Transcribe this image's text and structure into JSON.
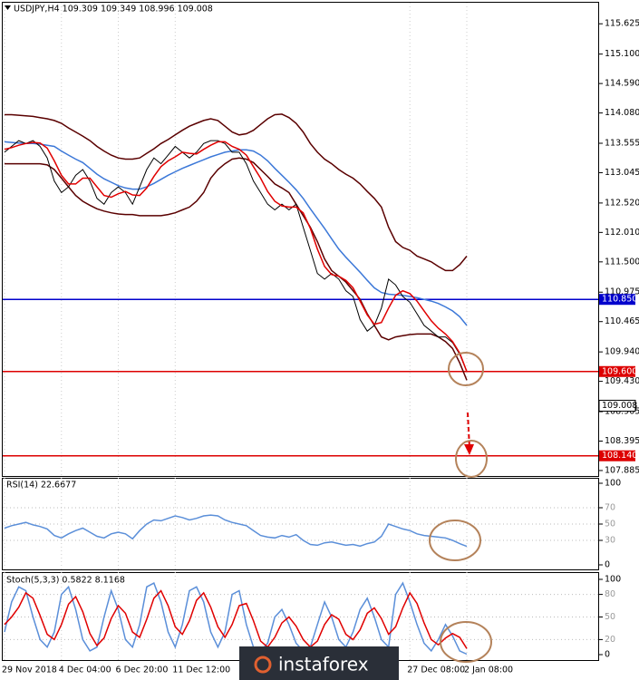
{
  "chart_data": [
    {
      "type": "line",
      "title": "USDJPY,H4  109.309 109.349 108.996 109.008",
      "categories": [
        "29 Nov 2018",
        null,
        null,
        null,
        null,
        null,
        null,
        null,
        "4 Dec 04:00",
        null,
        null,
        null,
        null,
        null,
        null,
        null,
        "6 Dec 20:00",
        null,
        null,
        null,
        null,
        null,
        null,
        null,
        "11 Dec 12:00",
        null,
        null,
        null,
        null,
        null,
        null,
        null,
        null,
        null,
        null,
        null,
        null,
        null,
        null,
        null,
        null,
        null,
        null,
        null,
        null,
        null,
        null,
        null,
        null,
        null,
        null,
        null,
        null,
        null,
        null,
        null,
        null,
        "27 Dec 08:00",
        null,
        null,
        null,
        null,
        null,
        null,
        null,
        "2 Jan 08:00"
      ],
      "ylim": [
        107.79,
        115.99
      ],
      "yticks": [
        {
          "value": 115.625,
          "label": "115.625"
        },
        {
          "value": 115.1,
          "label": "115.100"
        },
        {
          "value": 114.59,
          "label": "114.590"
        },
        {
          "value": 114.08,
          "label": "114.080"
        },
        {
          "value": 113.555,
          "label": "113.555"
        },
        {
          "value": 113.045,
          "label": "113.045"
        },
        {
          "value": 112.52,
          "label": "112.520"
        },
        {
          "value": 112.01,
          "label": "112.010"
        },
        {
          "value": 111.5,
          "label": "111.500"
        },
        {
          "value": 110.975,
          "label": "110.975"
        },
        {
          "value": 110.465,
          "label": "110.465"
        },
        {
          "value": 109.94,
          "label": "109.940"
        },
        {
          "value": 109.43,
          "label": "109.430"
        },
        {
          "value": 108.905,
          "label": "108.905"
        },
        {
          "value": 108.395,
          "label": "108.395"
        },
        {
          "value": 107.885,
          "label": "107.885"
        }
      ],
      "levels": [
        {
          "value": 110.85,
          "label": "110.850",
          "color": "#0000cc"
        },
        {
          "value": 109.6,
          "label": "109.600",
          "color": "#dd0000"
        },
        {
          "value": 108.14,
          "label": "108.140",
          "color": "#dd0000"
        }
      ],
      "current": {
        "value": 109.008,
        "label": "109.008"
      },
      "series": [
        {
          "color": "#5a0000",
          "values": [
            114.05,
            114.05,
            114.04,
            114.03,
            114.02,
            114.0,
            113.98,
            113.95,
            113.9,
            113.82,
            113.75,
            113.68,
            113.6,
            113.5,
            113.42,
            113.35,
            113.3,
            113.28,
            113.28,
            113.3,
            113.38,
            113.46,
            113.55,
            113.62,
            113.7,
            113.78,
            113.85,
            113.9,
            113.95,
            113.98,
            113.95,
            113.85,
            113.75,
            113.7,
            113.72,
            113.78,
            113.88,
            113.98,
            114.05,
            114.06,
            114.0,
            113.9,
            113.75,
            113.55,
            113.4,
            113.28,
            113.2,
            113.1,
            113.02,
            112.95,
            112.85,
            112.72,
            112.6,
            112.45,
            112.1,
            111.85,
            111.75,
            111.7,
            111.6,
            111.55,
            111.5,
            111.42,
            111.35,
            111.35,
            111.45,
            111.6
          ]
        },
        {
          "color": "#5a0000",
          "values": [
            113.2,
            113.2,
            113.2,
            113.2,
            113.2,
            113.2,
            113.18,
            113.1,
            112.95,
            112.8,
            112.65,
            112.55,
            112.48,
            112.42,
            112.38,
            112.35,
            112.33,
            112.32,
            112.32,
            112.3,
            112.3,
            112.3,
            112.3,
            112.32,
            112.35,
            112.4,
            112.45,
            112.55,
            112.7,
            112.95,
            113.1,
            113.2,
            113.28,
            113.3,
            113.28,
            113.22,
            113.1,
            112.98,
            112.85,
            112.78,
            112.7,
            112.5,
            112.3,
            112.1,
            111.85,
            111.55,
            111.35,
            111.25,
            111.15,
            111.0,
            110.85,
            110.6,
            110.4,
            110.2,
            110.15,
            110.2,
            110.22,
            110.24,
            110.25,
            110.25,
            110.25,
            110.2,
            110.12,
            110.0,
            109.75,
            109.45
          ]
        },
        {
          "color": "#3c78d8",
          "values": [
            113.58,
            113.57,
            113.56,
            113.55,
            113.55,
            113.54,
            113.52,
            113.5,
            113.42,
            113.35,
            113.28,
            113.22,
            113.12,
            113.02,
            112.94,
            112.88,
            112.82,
            112.78,
            112.76,
            112.76,
            112.8,
            112.86,
            112.93,
            113.0,
            113.06,
            113.12,
            113.17,
            113.22,
            113.27,
            113.32,
            113.36,
            113.4,
            113.42,
            113.44,
            113.44,
            113.42,
            113.35,
            113.25,
            113.12,
            113.0,
            112.88,
            112.75,
            112.6,
            112.42,
            112.25,
            112.08,
            111.9,
            111.72,
            111.58,
            111.45,
            111.32,
            111.18,
            111.05,
            110.97,
            110.94,
            110.93,
            110.92,
            110.9,
            110.88,
            110.85,
            110.82,
            110.78,
            110.72,
            110.65,
            110.55,
            110.4
          ]
        },
        {
          "color": "#000000",
          "values": [
            113.4,
            113.5,
            113.6,
            113.55,
            113.6,
            113.5,
            113.3,
            112.9,
            112.7,
            112.8,
            113.0,
            113.1,
            112.9,
            112.6,
            112.5,
            112.7,
            112.8,
            112.7,
            112.5,
            112.8,
            113.1,
            113.3,
            113.2,
            113.35,
            113.5,
            113.4,
            113.3,
            113.4,
            113.55,
            113.6,
            113.6,
            113.55,
            113.4,
            113.4,
            113.2,
            112.9,
            112.7,
            112.5,
            112.4,
            112.5,
            112.4,
            112.5,
            112.1,
            111.7,
            111.3,
            111.2,
            111.3,
            111.2,
            111.0,
            110.9,
            110.5,
            110.3,
            110.4,
            110.7,
            111.2,
            111.1,
            110.9,
            110.8,
            110.6,
            110.4,
            110.3,
            110.2,
            110.2,
            110.1,
            109.9,
            109.6
          ]
        },
        {
          "color": "#e00000",
          "values": [
            113.45,
            113.48,
            113.52,
            113.55,
            113.57,
            113.56,
            113.47,
            113.25,
            113.0,
            112.85,
            112.85,
            112.95,
            112.95,
            112.8,
            112.65,
            112.62,
            112.68,
            112.72,
            112.66,
            112.65,
            112.78,
            112.98,
            113.15,
            113.25,
            113.32,
            113.4,
            113.38,
            113.37,
            113.45,
            113.52,
            113.58,
            113.58,
            113.5,
            113.45,
            113.35,
            113.15,
            112.95,
            112.72,
            112.55,
            112.47,
            112.45,
            112.45,
            112.35,
            112.08,
            111.72,
            111.42,
            111.28,
            111.25,
            111.18,
            111.05,
            110.82,
            110.58,
            110.42,
            110.45,
            110.7,
            110.92,
            111.0,
            110.95,
            110.82,
            110.65,
            110.48,
            110.35,
            110.25,
            110.12,
            109.92,
            109.6
          ]
        }
      ]
    },
    {
      "type": "line",
      "title": "RSI(14) 22.6677",
      "ylim": [
        0,
        100
      ],
      "yticks": [
        100,
        70,
        50,
        30,
        0
      ],
      "series": [
        {
          "color": "#5b8fd9",
          "values": [
            45,
            48,
            50,
            52,
            49,
            47,
            44,
            36,
            33,
            38,
            42,
            45,
            40,
            35,
            33,
            38,
            40,
            38,
            32,
            42,
            50,
            55,
            54,
            57,
            60,
            58,
            55,
            57,
            60,
            61,
            60,
            55,
            52,
            50,
            48,
            42,
            36,
            34,
            33,
            36,
            34,
            37,
            30,
            25,
            24,
            27,
            28,
            26,
            24,
            25,
            23,
            26,
            28,
            35,
            50,
            47,
            44,
            42,
            38,
            36,
            35,
            34,
            33,
            30,
            26,
            22.67
          ]
        }
      ]
    },
    {
      "type": "line",
      "title": "Stoch(5,3,3) 0.5822 8.1168",
      "ylim": [
        0,
        100
      ],
      "yticks": [
        100,
        80,
        50,
        20,
        0
      ],
      "series": [
        {
          "color": "#5b8fd9",
          "values": [
            30,
            70,
            90,
            85,
            50,
            20,
            10,
            30,
            80,
            90,
            60,
            20,
            5,
            10,
            50,
            85,
            60,
            20,
            10,
            40,
            90,
            95,
            70,
            30,
            10,
            40,
            85,
            90,
            70,
            30,
            10,
            30,
            80,
            85,
            40,
            10,
            5,
            15,
            50,
            60,
            40,
            15,
            5,
            10,
            40,
            70,
            50,
            20,
            10,
            30,
            60,
            75,
            50,
            20,
            10,
            80,
            95,
            70,
            40,
            15,
            5,
            20,
            40,
            25,
            5,
            0.58
          ]
        },
        {
          "color": "#e00000",
          "values": [
            40,
            50,
            63,
            82,
            75,
            52,
            27,
            20,
            40,
            67,
            77,
            57,
            28,
            12,
            22,
            48,
            65,
            55,
            30,
            23,
            47,
            75,
            85,
            65,
            37,
            27,
            45,
            72,
            82,
            63,
            37,
            23,
            40,
            65,
            68,
            45,
            18,
            10,
            23,
            42,
            50,
            38,
            20,
            10,
            18,
            40,
            53,
            47,
            27,
            20,
            33,
            55,
            62,
            48,
            27,
            37,
            62,
            82,
            68,
            42,
            20,
            13,
            22,
            28,
            23,
            8.12
          ]
        }
      ]
    }
  ],
  "watermark": "instaforex"
}
